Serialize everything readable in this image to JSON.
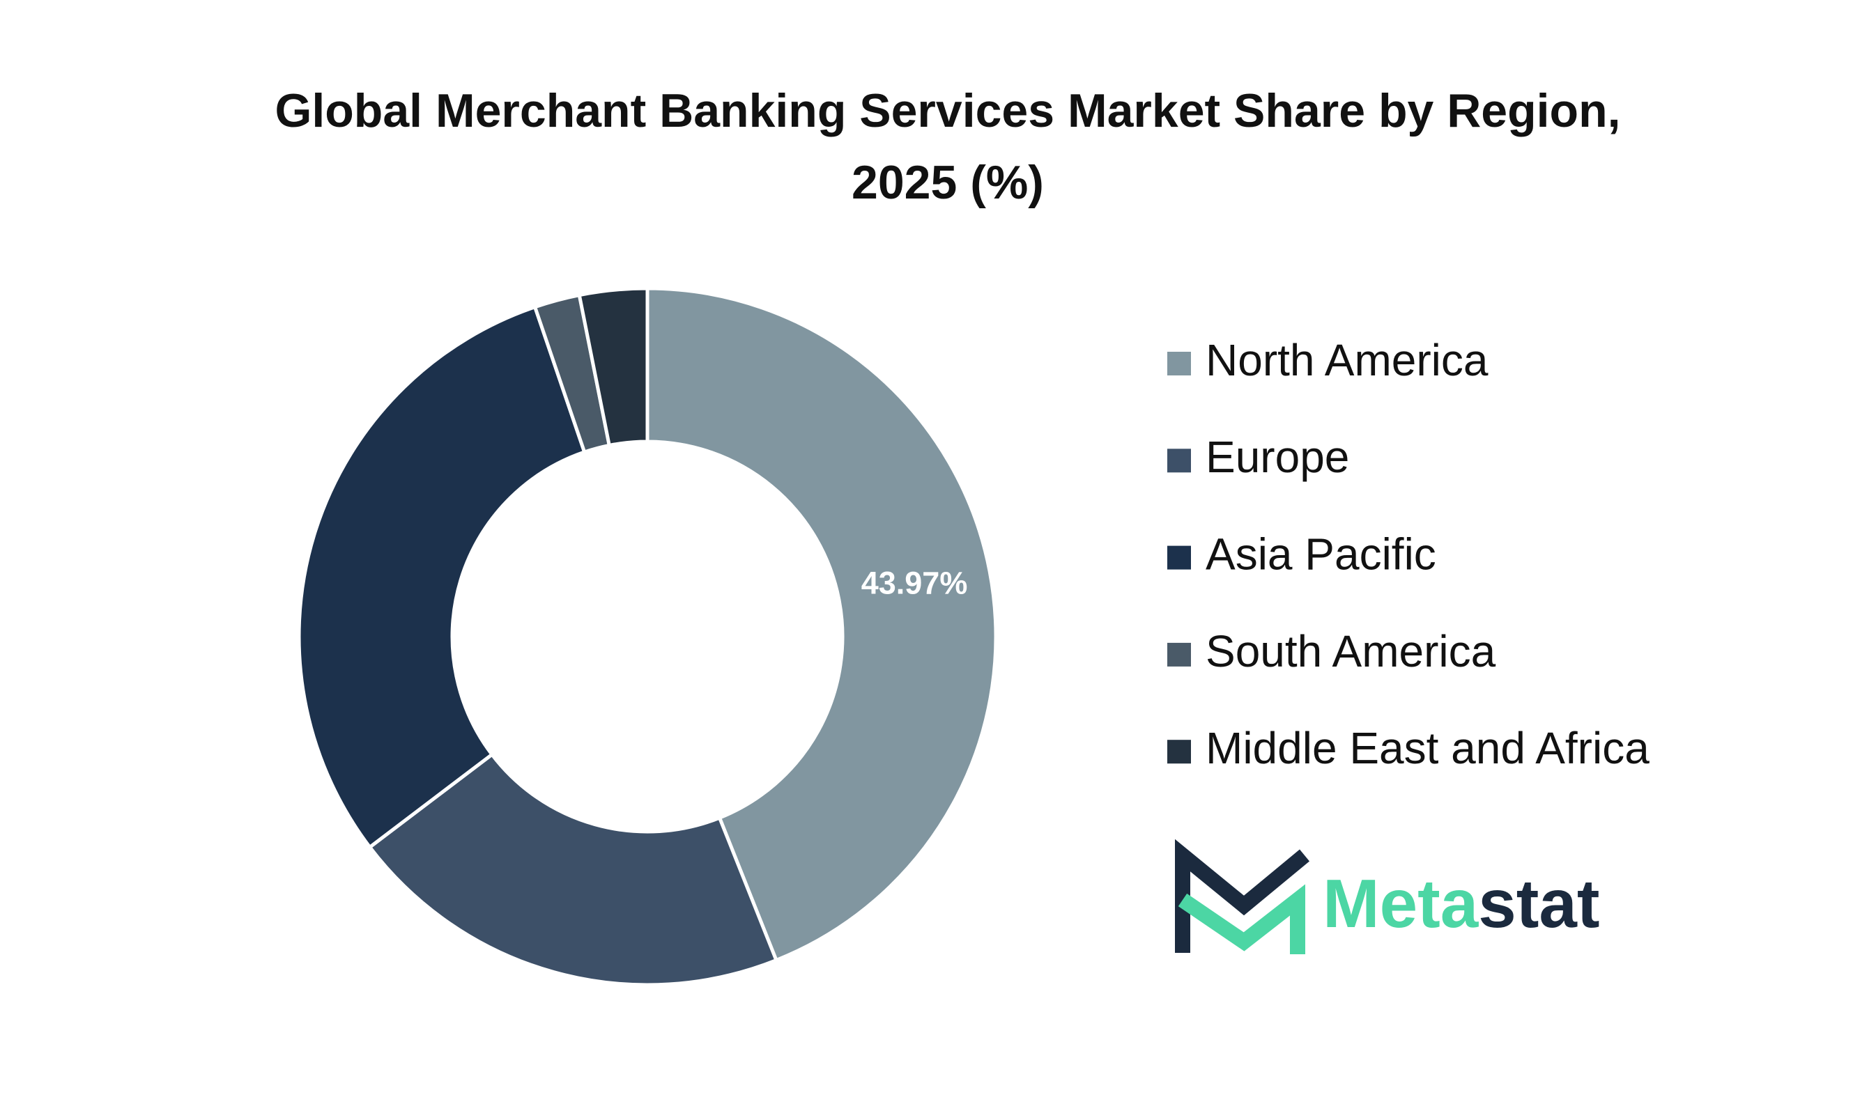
{
  "chart_data": {
    "type": "donut",
    "title": "Global Merchant Banking Services Market Share by Region, 2025 (%)",
    "categories": [
      "North America",
      "Europe",
      "Asia Pacific",
      "South America",
      "Middle East and Africa"
    ],
    "values": [
      43.97,
      20.7,
      30.1,
      2.1,
      3.13
    ],
    "value_labels": [
      "43.97%",
      null,
      null,
      null,
      null
    ],
    "colors": [
      "#8196a0",
      "#3d5068",
      "#1c314c",
      "#4a5a68",
      "#243240"
    ],
    "legend": "right"
  },
  "logo": [
    "Meta",
    "stat"
  ]
}
